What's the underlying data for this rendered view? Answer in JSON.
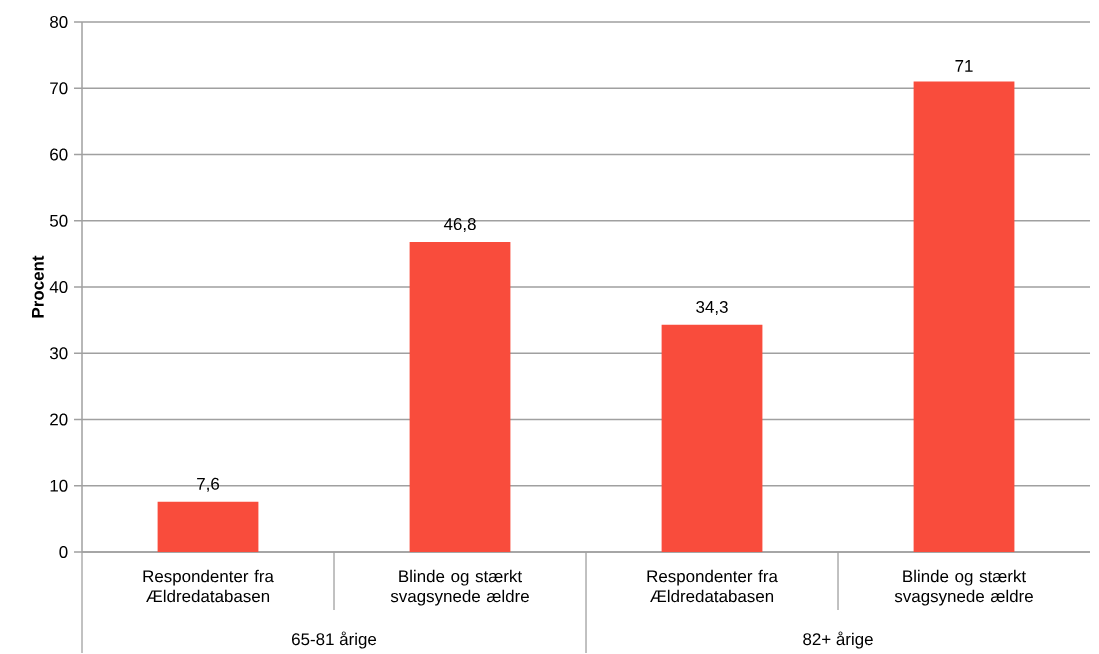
{
  "chart_data": {
    "type": "bar",
    "ylabel": "Procent",
    "categories": [
      "Respondenter fra Ældredatabasen",
      "Blinde og stærkt svagsynede ældre",
      "Respondenter fra Ældredatabasen",
      "Blinde og stærkt svagsynede ældre"
    ],
    "values": [
      7.6,
      46.8,
      34.3,
      71
    ],
    "value_labels": [
      "7,6",
      "46,8",
      "34,3",
      "71"
    ],
    "color": "#f94c3c",
    "ylim": [
      0,
      80
    ],
    "yticks": [
      0,
      10,
      20,
      30,
      40,
      50,
      60,
      70,
      80
    ],
    "grid": "y",
    "annotations": [
      "65-81 årige",
      "82+ årige"
    ]
  }
}
